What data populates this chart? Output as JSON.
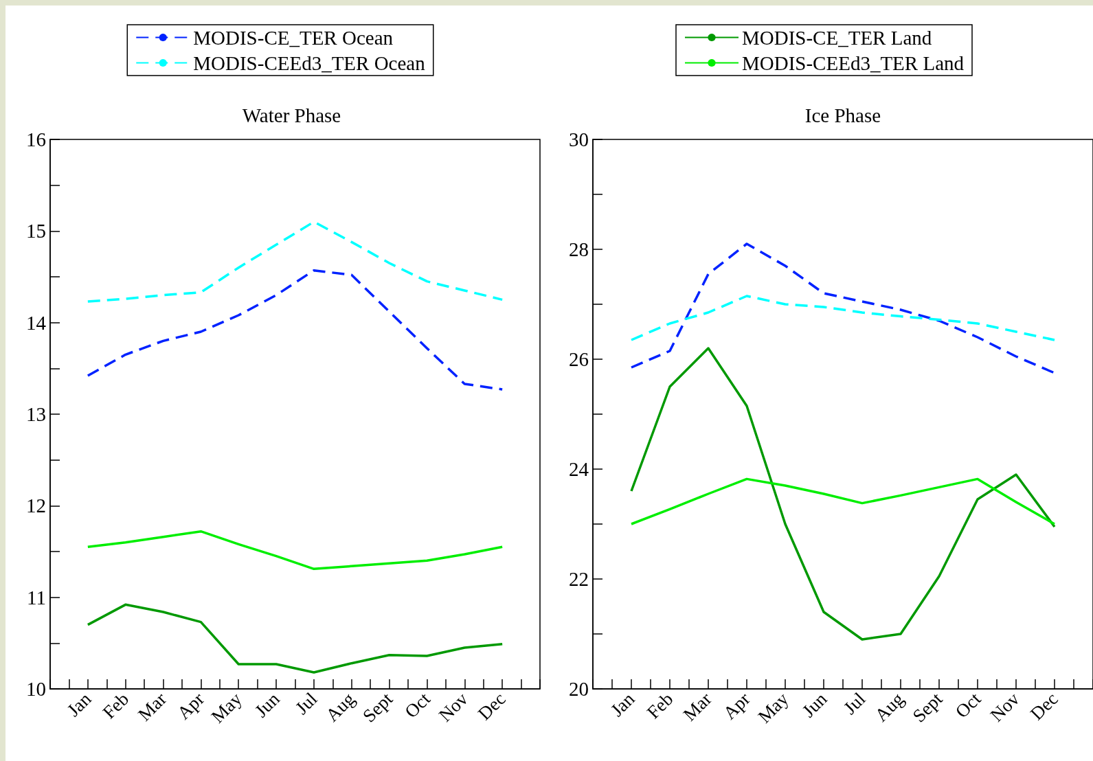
{
  "chart_data": [
    {
      "type": "line",
      "title": "Water Phase",
      "categories": [
        "Jan",
        "Feb",
        "Mar",
        "Apr",
        "May",
        "Jun",
        "Jul",
        "Aug",
        "Sept",
        "Oct",
        "Nov",
        "Dec"
      ],
      "series": [
        {
          "name": "MODIS-CE_TER Ocean",
          "color": "#0022ff",
          "line_style": "dashed",
          "values": [
            13.42,
            13.65,
            13.8,
            13.9,
            14.08,
            14.3,
            14.57,
            14.52,
            14.12,
            13.72,
            13.33,
            13.27
          ]
        },
        {
          "name": "MODIS-CEEd3_TER Ocean",
          "color": "#00ffff",
          "line_style": "dashed",
          "values": [
            14.23,
            14.26,
            14.3,
            14.33,
            14.6,
            14.85,
            15.1,
            14.88,
            14.65,
            14.45,
            14.35,
            14.25
          ]
        },
        {
          "color": "#009900",
          "line_style": "solid",
          "values": [
            10.7,
            10.92,
            10.84,
            10.73,
            10.27,
            10.27,
            10.18,
            10.28,
            10.37,
            10.36,
            10.45,
            10.49
          ]
        },
        {
          "color": "#00ee00",
          "line_style": "solid",
          "values": [
            11.55,
            11.6,
            11.66,
            11.72,
            11.58,
            11.45,
            11.31,
            11.34,
            11.37,
            11.4,
            11.47,
            11.55
          ]
        }
      ],
      "ylim": [
        10,
        16
      ],
      "yticks": [
        10,
        {
          "value": 10.5,
          "label": null
        },
        11,
        {
          "value": 11.5,
          "label": null
        },
        12,
        {
          "value": 12.5,
          "label": null
        },
        13,
        {
          "value": 13.5,
          "label": null
        },
        14,
        {
          "value": 14.5,
          "label": null
        },
        15,
        {
          "value": 15.5,
          "label": null
        },
        16
      ],
      "grid": false,
      "legend": "top",
      "marker": "none"
    },
    {
      "type": "line",
      "title": "Ice Phase",
      "categories": [
        "Jan",
        "Feb",
        "Mar",
        "Apr",
        "May",
        "Jun",
        "Jul",
        "Aug",
        "Sept",
        "Oct",
        "Nov",
        "Dec"
      ],
      "series": [
        {
          "color": "#0022ff",
          "line_style": "dashed",
          "values": [
            25.85,
            26.15,
            27.55,
            28.1,
            27.7,
            27.2,
            27.05,
            26.9,
            26.7,
            26.4,
            26.05,
            25.75
          ]
        },
        {
          "color": "#00ffff",
          "line_style": "dashed",
          "values": [
            26.35,
            26.65,
            26.85,
            27.15,
            27.0,
            26.95,
            26.85,
            26.78,
            26.72,
            26.65,
            26.5,
            26.35
          ]
        },
        {
          "name": "MODIS-CE_TER Land",
          "color": "#009900",
          "line_style": "solid",
          "values": [
            23.6,
            25.5,
            26.2,
            25.15,
            23.0,
            21.4,
            20.9,
            21.0,
            22.05,
            23.45,
            23.9,
            22.95
          ]
        },
        {
          "name": "MODIS-CEEd3_TER Land",
          "color": "#00ee00",
          "line_style": "solid",
          "values": [
            23.0,
            23.27,
            23.55,
            23.82,
            23.7,
            23.55,
            23.38,
            23.52,
            23.67,
            23.82,
            23.4,
            23.0
          ]
        }
      ],
      "ylim": [
        20,
        30
      ],
      "yticks": [
        20,
        {
          "value": 21,
          "label": null
        },
        22,
        {
          "value": 23,
          "label": null
        },
        24,
        {
          "value": 25,
          "label": null
        },
        26,
        {
          "value": 27,
          "label": null
        },
        28,
        {
          "value": 29,
          "label": null
        },
        30
      ],
      "grid": false,
      "legend": "top",
      "marker": "none"
    }
  ]
}
